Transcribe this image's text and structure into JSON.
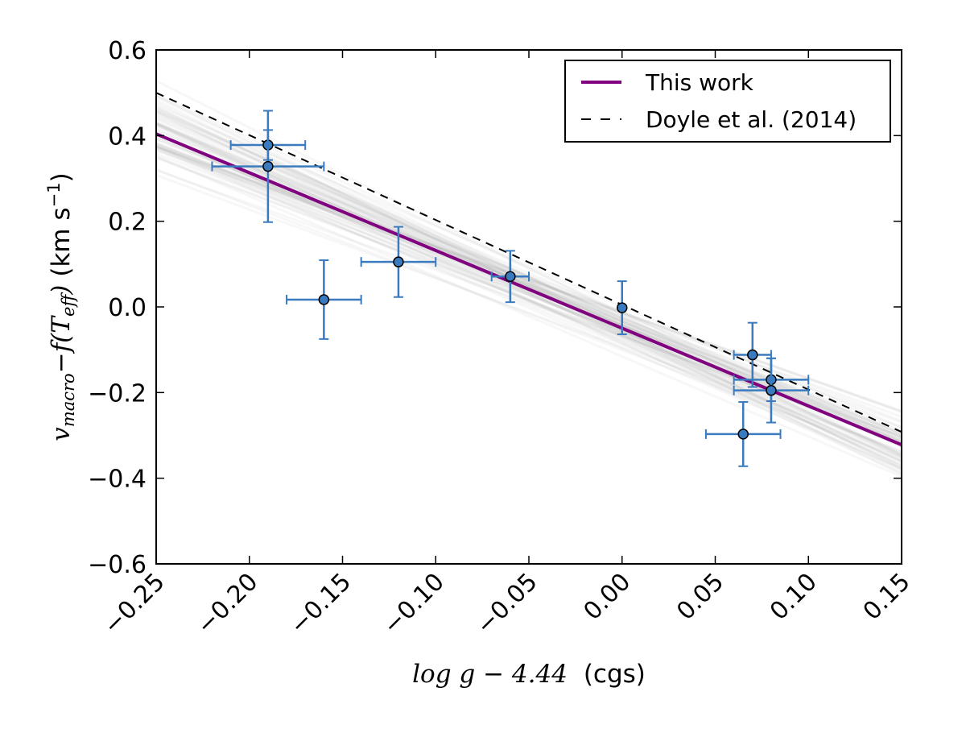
{
  "chart_data": {
    "type": "scatter",
    "title": "",
    "xlabel": {
      "math": "log g − 4.44",
      "unit": "(cgs)"
    },
    "ylabel": {
      "math_v": "v",
      "math_sub": "macro",
      "math_mid": "−f(T",
      "math_sub2": "eff",
      "math_end": ")",
      "unit": "(km s",
      "unit_exp": "−1",
      "unit_end": ")"
    },
    "xlim": [
      -0.25,
      0.15
    ],
    "ylim": [
      -0.6,
      0.6
    ],
    "x_ticks": [
      -0.25,
      -0.2,
      -0.15,
      -0.1,
      -0.05,
      0.0,
      0.05,
      0.1,
      0.15
    ],
    "x_tick_labels": [
      "−0.25",
      "−0.20",
      "−0.15",
      "−0.10",
      "−0.05",
      "0.00",
      "0.05",
      "0.10",
      "0.15"
    ],
    "y_ticks": [
      0.6,
      0.4,
      0.2,
      0.0,
      -0.2,
      -0.4,
      -0.6
    ],
    "y_tick_labels": [
      "0.6",
      "0.4",
      "0.2",
      "0.0",
      "−0.2",
      "−0.4",
      "−0.6"
    ],
    "grid": false,
    "legend_position": "top-right",
    "colors": {
      "fit": "#800080",
      "doyle": "#000000",
      "points": "#3a7bbf",
      "errorbars": "#3a7bbf",
      "samples": "#888888"
    },
    "series": [
      {
        "name": "This work",
        "kind": "line",
        "x": [
          -0.25,
          0.15
        ],
        "y": [
          0.404,
          -0.322
        ]
      },
      {
        "name": "Doyle et al. (2014)",
        "kind": "dashed-line",
        "x": [
          -0.25,
          0.15
        ],
        "y": [
          0.5,
          -0.292
        ]
      },
      {
        "name": "data",
        "kind": "scatter-errorbars",
        "points": [
          {
            "x": -0.19,
            "y": 0.378,
            "xerr": 0.02,
            "yerr": 0.035
          },
          {
            "x": -0.19,
            "y": 0.328,
            "xerr": 0.03,
            "yerr": 0.13
          },
          {
            "x": -0.16,
            "y": 0.017,
            "xerr": 0.02,
            "yerr": 0.092
          },
          {
            "x": -0.12,
            "y": 0.105,
            "xerr": 0.02,
            "yerr": 0.082
          },
          {
            "x": -0.06,
            "y": 0.071,
            "xerr": 0.01,
            "yerr": 0.06
          },
          {
            "x": 0.0,
            "y": -0.002,
            "xerr": 0.0,
            "yerr": 0.062
          },
          {
            "x": 0.07,
            "y": -0.112,
            "xerr": 0.01,
            "yerr": 0.075
          },
          {
            "x": 0.08,
            "y": -0.17,
            "xerr": 0.02,
            "yerr": 0.05
          },
          {
            "x": 0.08,
            "y": -0.195,
            "xerr": 0.02,
            "yerr": 0.075
          },
          {
            "x": 0.065,
            "y": -0.297,
            "xerr": 0.02,
            "yerr": 0.075
          }
        ]
      }
    ],
    "posterior_samples": {
      "count": 60,
      "slope_mean": -1.815,
      "slope_sd": 0.18,
      "intercept_mean": -0.05,
      "intercept_sd": 0.025
    },
    "legend": [
      {
        "label": "This work",
        "style": "solid"
      },
      {
        "label": "Doyle et al. (2014)",
        "style": "dashed"
      }
    ]
  }
}
